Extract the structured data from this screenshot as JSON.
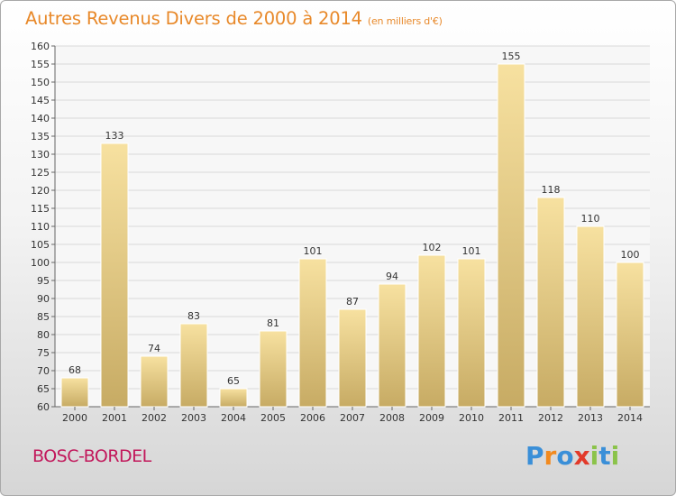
{
  "chart_data": {
    "type": "bar",
    "title": "Autres Revenus Divers de 2000 à 2014",
    "subtitle": "(en milliers d'€)",
    "categories": [
      "2000",
      "2001",
      "2002",
      "2003",
      "2004",
      "2005",
      "2006",
      "2007",
      "2008",
      "2009",
      "2010",
      "2011",
      "2012",
      "2013",
      "2014"
    ],
    "values": [
      68,
      133,
      74,
      83,
      65,
      81,
      101,
      87,
      94,
      102,
      101,
      155,
      118,
      110,
      100
    ],
    "ylim": [
      60,
      160
    ],
    "yticks": [
      60,
      65,
      70,
      75,
      80,
      85,
      90,
      95,
      100,
      105,
      110,
      115,
      120,
      125,
      130,
      135,
      140,
      145,
      150,
      155,
      160
    ],
    "grid": true,
    "bar_color": "#e8cf82",
    "xlabel": "",
    "ylabel": ""
  },
  "footer": {
    "location": "BOSC-BORDEL",
    "logo_text": "Proxiti",
    "logo_colors": [
      "#3a8fd8",
      "#f28a1e",
      "#3a8fd8",
      "#e23a2a",
      "#8bc34a",
      "#3a8fd8",
      "#8bc34a"
    ]
  },
  "colors": {
    "title": "#e8892a",
    "location": "#c2185b"
  }
}
